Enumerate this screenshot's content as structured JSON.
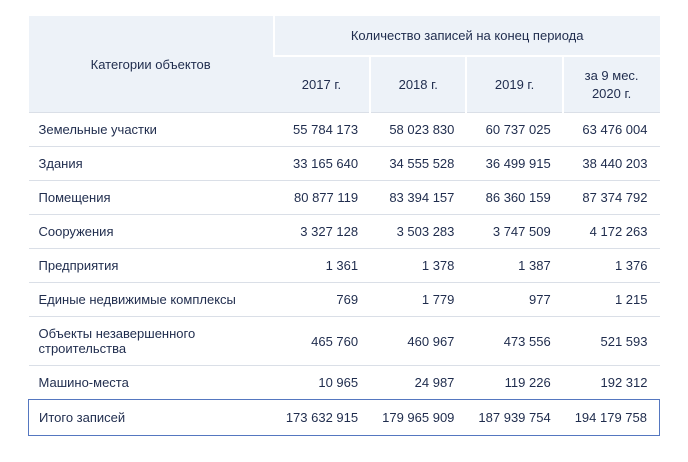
{
  "colors": {
    "header_bg": "#edf2f8",
    "row_divider": "#dadfe7",
    "total_border": "#5577c0",
    "text": "#1f2c4d"
  },
  "table": {
    "category_header": "Категории объектов",
    "group_header": "Количество записей на конец периода",
    "year_headers": [
      "2017 г.",
      "2018 г.",
      "2019 г.",
      "за 9 мес. 2020 г."
    ],
    "rows": [
      {
        "label": "Земельные участки",
        "values": [
          "55 784 173",
          "58 023 830",
          "60 737 025",
          "63 476 004"
        ]
      },
      {
        "label": "Здания",
        "values": [
          "33 165 640",
          "34 555 528",
          "36 499 915",
          "38 440 203"
        ]
      },
      {
        "label": "Помещения",
        "values": [
          "80 877 119",
          "83 394 157",
          "86 360 159",
          "87 374 792"
        ]
      },
      {
        "label": "Сооружения",
        "values": [
          "3 327 128",
          "3 503 283",
          "3 747 509",
          "4 172 263"
        ]
      },
      {
        "label": "Предприятия",
        "values": [
          "1 361",
          "1 378",
          "1 387",
          "1 376"
        ]
      },
      {
        "label": "Единые недвижимые комплексы",
        "values": [
          "769",
          "1 779",
          "977",
          "1 215"
        ]
      },
      {
        "label": "Объекты незавершенного строительства",
        "values": [
          "465 760",
          "460 967",
          "473 556",
          "521 593"
        ]
      },
      {
        "label": "Машино-места",
        "values": [
          "10 965",
          "24 987",
          "119 226",
          "192 312"
        ]
      }
    ],
    "total": {
      "label": "Итого записей",
      "values": [
        "173 632 915",
        "179 965 909",
        "187 939 754",
        "194 179 758"
      ]
    }
  },
  "chart_data": {
    "type": "table",
    "title": "Количество записей на конец периода",
    "columns": [
      "Категории объектов",
      "2017 г.",
      "2018 г.",
      "2019 г.",
      "за 9 мес. 2020 г."
    ],
    "rows": [
      [
        "Земельные участки",
        55784173,
        58023830,
        60737025,
        63476004
      ],
      [
        "Здания",
        33165640,
        34555528,
        36499915,
        38440203
      ],
      [
        "Помещения",
        80877119,
        83394157,
        86360159,
        87374792
      ],
      [
        "Сооружения",
        3327128,
        3503283,
        3747509,
        4172263
      ],
      [
        "Предприятия",
        1361,
        1378,
        1387,
        1376
      ],
      [
        "Единые недвижимые комплексы",
        769,
        1779,
        977,
        1215
      ],
      [
        "Объекты незавершенного строительства",
        465760,
        460967,
        473556,
        521593
      ],
      [
        "Машино-места",
        10965,
        24987,
        119226,
        192312
      ],
      [
        "Итого записей",
        173632915,
        179965909,
        187939754,
        194179758
      ]
    ]
  }
}
